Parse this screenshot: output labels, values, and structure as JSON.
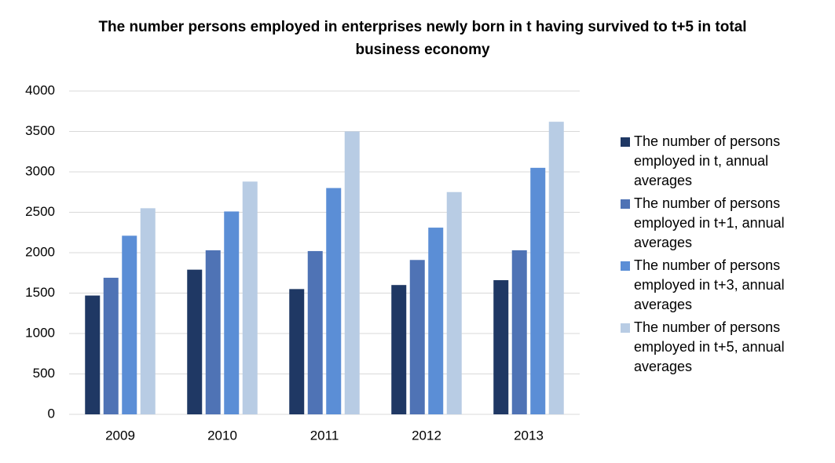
{
  "chart_data": {
    "type": "bar",
    "title": "The number persons employed in enterprises newly born  in t having survived to t+5 in total business economy",
    "categories": [
      "2009",
      "2010",
      "2011",
      "2012",
      "2013"
    ],
    "series": [
      {
        "name": "The number of persons employed in t, annual averages",
        "color": "#1f3864",
        "values": [
          1470,
          1790,
          1550,
          1600,
          1660
        ]
      },
      {
        "name": "The number of persons employed in t+1, annual averages",
        "color": "#4f73b5",
        "values": [
          1690,
          2030,
          2020,
          1910,
          2030
        ]
      },
      {
        "name": "The number of persons employed in t+3, annual averages",
        "color": "#5b8ed6",
        "values": [
          2210,
          2510,
          2800,
          2310,
          3050
        ]
      },
      {
        "name": "The number of persons employed in t+5, annual averages",
        "color": "#b8cce4",
        "values": [
          2550,
          2880,
          3500,
          2750,
          3620
        ]
      }
    ],
    "ylim": [
      0,
      4000
    ],
    "yticks": [
      0,
      500,
      1000,
      1500,
      2000,
      2500,
      3000,
      3500,
      4000
    ],
    "grid": true,
    "legend": "right"
  }
}
